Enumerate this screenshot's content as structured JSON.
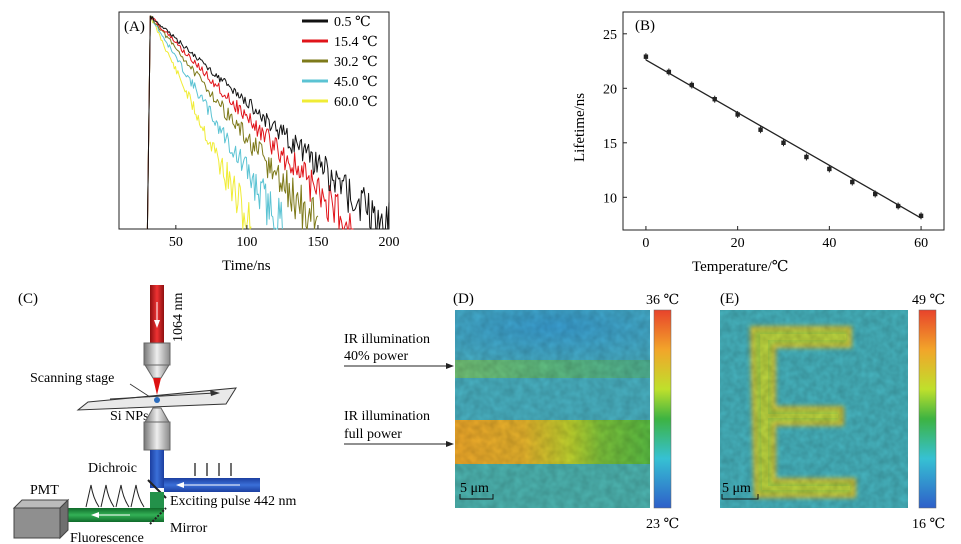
{
  "figure": {
    "panelA": {
      "label": "(A)",
      "xlabel": "Time/ns",
      "xticks": [
        "50",
        "100",
        "150",
        "200"
      ]
    },
    "panelB": {
      "label": "(B)",
      "xlabel": "Temperature/℃",
      "ylabel": "Lifetime/ns",
      "xticks": [
        "0",
        "20",
        "40",
        "60"
      ],
      "yticks": [
        "10",
        "15",
        "20",
        "25"
      ]
    },
    "panelC": {
      "label": "(C)",
      "laser": "1064 nm",
      "stage": "Scanning stage",
      "sample": "Si NPs",
      "dichroic": "Dichroic",
      "detector": "PMT",
      "pulse": "Exciting pulse 442 nm",
      "mirror": "Mirror",
      "fluorescence": "Fluorescence"
    },
    "panelD": {
      "label": "(D)",
      "arrow1": [
        "IR illumination",
        "40% power"
      ],
      "arrow2": [
        "IR illumination",
        "full power"
      ],
      "scalebar": "5 μm",
      "cbar_max": "36 ℃",
      "cbar_min": "23 ℃"
    },
    "panelE": {
      "label": "(E)",
      "scalebar": "5 μm",
      "cbar_max": "49 ℃",
      "cbar_min": "16 ℃"
    }
  },
  "chart_data": [
    {
      "type": "line",
      "title": "(A)",
      "xlabel": "Time/ns",
      "ylabel": "",
      "xlim": [
        10,
        200
      ],
      "legend_position": "top-right",
      "series": [
        {
          "name": "0.5 ℃",
          "color": "#111111",
          "peak_time": 32,
          "decay_end": 200
        },
        {
          "name": "15.4 ℃",
          "color": "#e0141a",
          "peak_time": 32,
          "decay_end": 175
        },
        {
          "name": "30.2 ℃",
          "color": "#7e7a1a",
          "peak_time": 32,
          "decay_end": 150
        },
        {
          "name": "45.0 ℃",
          "color": "#5bc3d3",
          "peak_time": 32,
          "decay_end": 125
        },
        {
          "name": "60.0 ℃",
          "color": "#f0ec36",
          "peak_time": 32,
          "decay_end": 103
        }
      ]
    },
    {
      "type": "scatter",
      "title": "(B)",
      "xlabel": "Temperature/℃",
      "ylabel": "Lifetime/ns",
      "xlim": [
        -5,
        65
      ],
      "ylim": [
        7,
        27
      ],
      "x": [
        0,
        5,
        10,
        15,
        20,
        25,
        30,
        35,
        40,
        45,
        50,
        55,
        60
      ],
      "y": [
        22.9,
        21.5,
        20.3,
        19.0,
        17.6,
        16.2,
        15.0,
        13.7,
        12.6,
        11.4,
        10.3,
        9.2,
        8.3
      ],
      "fit": {
        "x": [
          0,
          60
        ],
        "y": [
          22.6,
          8.1
        ]
      }
    }
  ]
}
